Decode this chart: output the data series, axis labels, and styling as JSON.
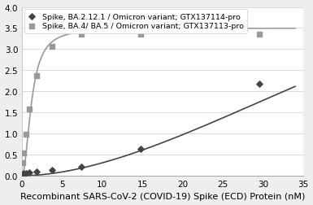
{
  "title": "",
  "xlabel": "Recombinant SARS-CoV-2 (COVID-19) Spike (ECD) Protein (nM)",
  "ylabel": "",
  "xlim": [
    0,
    35
  ],
  "ylim": [
    0,
    4
  ],
  "yticks": [
    0,
    0.5,
    1.0,
    1.5,
    2.0,
    2.5,
    3.0,
    3.5,
    4
  ],
  "xticks": [
    0,
    5,
    10,
    15,
    20,
    25,
    30,
    35
  ],
  "series1_label": "Spike, BA.2.12.1 / Omicron variant; GTX137114-pro",
  "series2_label": "Spike, BA.4/ BA.5 / Omicron variant; GTX137113-pro",
  "series1_color": "#444444",
  "series2_color": "#999999",
  "series1_marker": "D",
  "series2_marker": "s",
  "series1_x": [
    0.12,
    0.23,
    0.46,
    0.93,
    1.85,
    3.7,
    7.4,
    14.8,
    29.6
  ],
  "series1_y": [
    0.04,
    0.05,
    0.06,
    0.07,
    0.1,
    0.13,
    0.22,
    0.64,
    2.17
  ],
  "series2_x": [
    0.12,
    0.23,
    0.46,
    0.93,
    1.85,
    3.7,
    7.4,
    14.8,
    29.6
  ],
  "series2_y": [
    0.3,
    0.55,
    0.98,
    1.58,
    2.37,
    3.06,
    3.36,
    3.36,
    3.36
  ],
  "background_color": "#eeeeee",
  "plot_bg_color": "#ffffff",
  "xlabel_fontsize": 8,
  "tick_fontsize": 7.5,
  "legend_fontsize": 6.8,
  "series1_Bmax": 8.0,
  "series1_Kd": 60.0,
  "series1_n": 1.8,
  "series2_Bmax": 3.5,
  "series2_Kd": 1.2,
  "series2_n": 2.0
}
